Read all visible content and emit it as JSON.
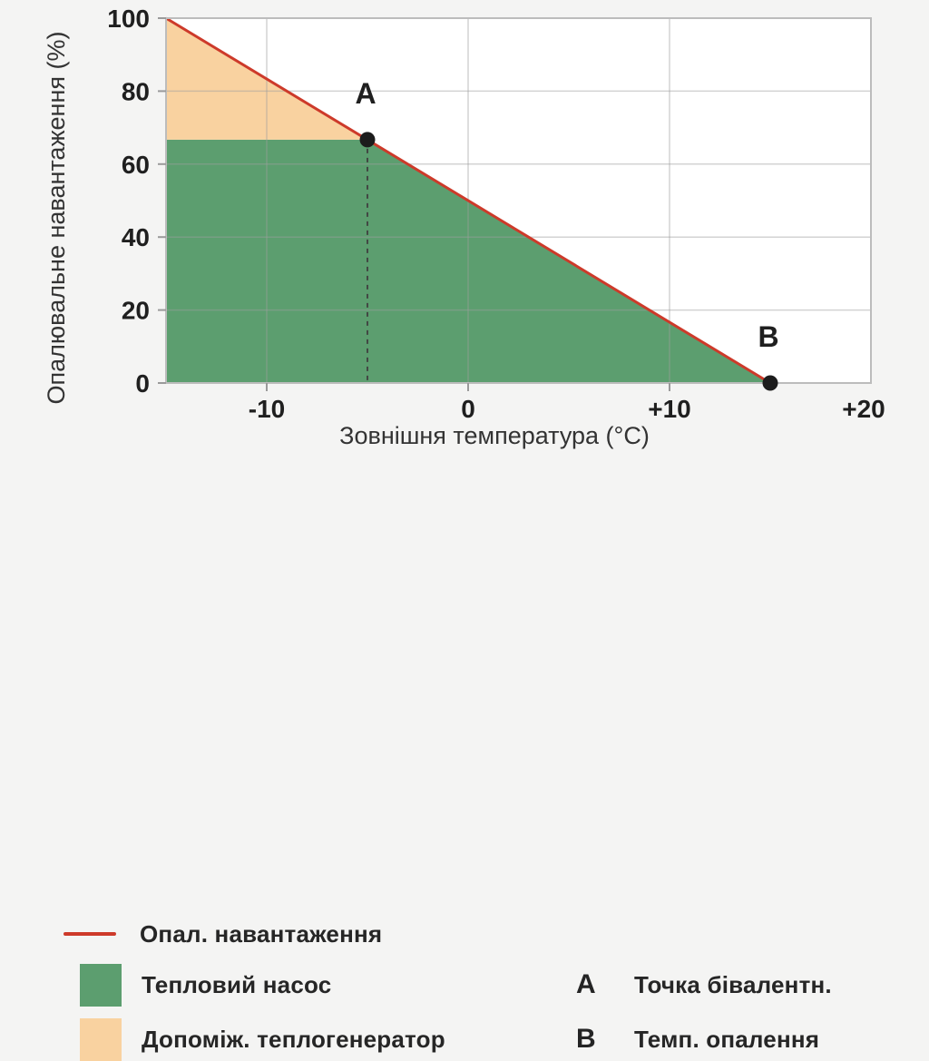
{
  "page": {
    "background": "#f4f4f3"
  },
  "colors": {
    "line_red": "#cd3a2a",
    "heat_pump_green": "#5c9e6f",
    "aux_orange": "#f9d2a0",
    "plot_bg": "#ffffff",
    "grid": "#9e9e9e",
    "border": "#bcbcbc",
    "tick_text": "#1f1f1f",
    "axis_title_text": "#333333",
    "dot": "#1c1c1c",
    "dashed": "#3f3f3f"
  },
  "chart_data": {
    "type": "area",
    "title": "",
    "xlabel": "Зовнішня температура (°С)",
    "ylabel": "Опалювальне навантаження (%)",
    "xlim": [
      -15,
      20
    ],
    "ylim": [
      0,
      100
    ],
    "grid": true,
    "legend_position": "bottom",
    "x_ticks": [
      {
        "value": -10,
        "label": "-10"
      },
      {
        "value": 0,
        "label": "0"
      },
      {
        "value": 10,
        "label": "+10"
      },
      {
        "value": 20,
        "label": "+20"
      }
    ],
    "y_ticks": [
      {
        "value": 0,
        "label": "0"
      },
      {
        "value": 20,
        "label": "20"
      },
      {
        "value": 40,
        "label": "40"
      },
      {
        "value": 60,
        "label": "60"
      },
      {
        "value": 80,
        "label": "80"
      },
      {
        "value": 100,
        "label": "100"
      }
    ],
    "tick_marks_x": [
      -10,
      0,
      10
    ],
    "series": [
      {
        "name": "Опал. навантаження",
        "kind": "line",
        "color_key": "line_red",
        "points": [
          [
            -15,
            100
          ],
          [
            15,
            0
          ]
        ]
      },
      {
        "name": "Тепловий насос",
        "kind": "area",
        "color_key": "heat_pump_green",
        "points": [
          [
            -15,
            0
          ],
          [
            -15,
            66.7
          ],
          [
            -5,
            66.7
          ],
          [
            15,
            0
          ]
        ]
      },
      {
        "name": "Допоміж. теплогенератор",
        "kind": "area",
        "color_key": "aux_orange",
        "points": [
          [
            -15,
            66.7
          ],
          [
            -15,
            100
          ],
          [
            -5,
            66.7
          ]
        ]
      }
    ],
    "markers": [
      {
        "symbol": "A",
        "x": -5,
        "y": 66.7,
        "description": "Точка бівалентн.",
        "dashed_drop_line": true
      },
      {
        "symbol": "B",
        "x": 15,
        "y": 0,
        "description": "Темп. опалення",
        "dashed_drop_line": false
      }
    ]
  },
  "legend": {
    "line": {
      "label": "Опал. навантаження"
    },
    "heat_pump": {
      "label": "Тепловий насос"
    },
    "aux": {
      "label": "Допоміж. теплогенератор"
    },
    "point_a": {
      "symbol": "A",
      "label": "Точка бівалентн."
    },
    "point_b": {
      "symbol": "B",
      "label": "Темп. опалення"
    }
  }
}
